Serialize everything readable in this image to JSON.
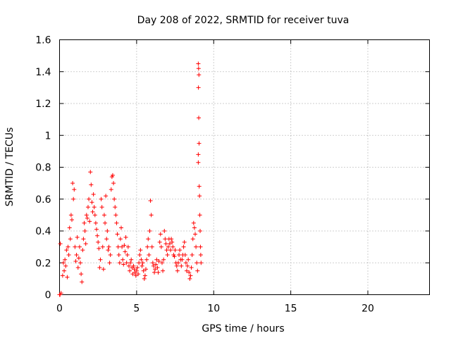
{
  "chart_data": {
    "type": "scatter",
    "title": "Day 208 of 2022, SRMTID for receiver tuva",
    "xlabel": "GPS time / hours",
    "ylabel": "SRMTID / TECUs",
    "xlim": [
      0,
      24
    ],
    "ylim": [
      0,
      1.6
    ],
    "xticks": [
      0,
      5,
      10,
      15,
      20
    ],
    "xtick_labels": [
      "0",
      "5",
      "10",
      "15",
      "20"
    ],
    "yticks": [
      0,
      0.2,
      0.4,
      0.6,
      0.8,
      1,
      1.2,
      1.4,
      1.6
    ],
    "ytick_labels": [
      "0",
      "0.2",
      "0.4",
      "0.6",
      "0.8",
      "1",
      "1.2",
      "1.4",
      "1.6"
    ],
    "grid": true,
    "marker": "+",
    "series": [
      {
        "name": "SRMTID",
        "color": "#ff0000",
        "points": [
          [
            0.0,
            0.0
          ],
          [
            0.03,
            0.0
          ],
          [
            0.05,
            0.32
          ],
          [
            0.1,
            0.01
          ],
          [
            0.2,
            0.12
          ],
          [
            0.25,
            0.2
          ],
          [
            0.3,
            0.15
          ],
          [
            0.35,
            0.22
          ],
          [
            0.4,
            0.18
          ],
          [
            0.45,
            0.28
          ],
          [
            0.5,
            0.11
          ],
          [
            0.55,
            0.3
          ],
          [
            0.6,
            0.25
          ],
          [
            0.65,
            0.42
          ],
          [
            0.7,
            0.35
          ],
          [
            0.75,
            0.5
          ],
          [
            0.8,
            0.47
          ],
          [
            0.85,
            0.7
          ],
          [
            0.9,
            0.6
          ],
          [
            0.95,
            0.66
          ],
          [
            1.0,
            0.3
          ],
          [
            1.05,
            0.21
          ],
          [
            1.1,
            0.25
          ],
          [
            1.15,
            0.36
          ],
          [
            1.2,
            0.17
          ],
          [
            1.25,
            0.23
          ],
          [
            1.3,
            0.3
          ],
          [
            1.35,
            0.2
          ],
          [
            1.4,
            0.13
          ],
          [
            1.45,
            0.08
          ],
          [
            1.5,
            0.28
          ],
          [
            1.55,
            0.35
          ],
          [
            1.6,
            0.45
          ],
          [
            1.65,
            0.4
          ],
          [
            1.7,
            0.32
          ],
          [
            1.75,
            0.5
          ],
          [
            1.8,
            0.48
          ],
          [
            1.85,
            0.55
          ],
          [
            1.9,
            0.6
          ],
          [
            1.95,
            0.46
          ],
          [
            2.0,
            0.77
          ],
          [
            2.05,
            0.69
          ],
          [
            2.1,
            0.58
          ],
          [
            2.15,
            0.52
          ],
          [
            2.2,
            0.63
          ],
          [
            2.25,
            0.55
          ],
          [
            2.3,
            0.5
          ],
          [
            2.35,
            0.45
          ],
          [
            2.4,
            0.41
          ],
          [
            2.45,
            0.37
          ],
          [
            2.5,
            0.33
          ],
          [
            2.55,
            0.29
          ],
          [
            2.6,
            0.17
          ],
          [
            2.65,
            0.22
          ],
          [
            2.7,
            0.6
          ],
          [
            2.75,
            0.55
          ],
          [
            2.8,
            0.3
          ],
          [
            2.85,
            0.16
          ],
          [
            2.9,
            0.5
          ],
          [
            2.95,
            0.45
          ],
          [
            3.0,
            0.62
          ],
          [
            3.05,
            0.35
          ],
          [
            3.1,
            0.4
          ],
          [
            3.15,
            0.28
          ],
          [
            3.2,
            0.3
          ],
          [
            3.25,
            0.2
          ],
          [
            3.3,
            0.25
          ],
          [
            3.35,
            0.66
          ],
          [
            3.4,
            0.74
          ],
          [
            3.45,
            0.75
          ],
          [
            3.5,
            0.7
          ],
          [
            3.55,
            0.6
          ],
          [
            3.6,
            0.55
          ],
          [
            3.65,
            0.5
          ],
          [
            3.7,
            0.45
          ],
          [
            3.75,
            0.38
          ],
          [
            3.8,
            0.3
          ],
          [
            3.85,
            0.25
          ],
          [
            3.9,
            0.2
          ],
          [
            3.95,
            0.35
          ],
          [
            4.0,
            0.42
          ],
          [
            4.05,
            0.3
          ],
          [
            4.1,
            0.22
          ],
          [
            4.15,
            0.19
          ],
          [
            4.2,
            0.31
          ],
          [
            4.25,
            0.27
          ],
          [
            4.3,
            0.36
          ],
          [
            4.35,
            0.2
          ],
          [
            4.4,
            0.25
          ],
          [
            4.45,
            0.3
          ],
          [
            4.5,
            0.18
          ],
          [
            4.55,
            0.15
          ],
          [
            4.6,
            0.2
          ],
          [
            4.65,
            0.22
          ],
          [
            4.7,
            0.17
          ],
          [
            4.75,
            0.13
          ],
          [
            4.8,
            0.18
          ],
          [
            4.85,
            0.16
          ],
          [
            4.9,
            0.14
          ],
          [
            4.95,
            0.12
          ],
          [
            5.0,
            0.15
          ],
          [
            5.05,
            0.17
          ],
          [
            5.1,
            0.13
          ],
          [
            5.15,
            0.2
          ],
          [
            5.2,
            0.25
          ],
          [
            5.25,
            0.28
          ],
          [
            5.3,
            0.22
          ],
          [
            5.35,
            0.18
          ],
          [
            5.4,
            0.2
          ],
          [
            5.45,
            0.15
          ],
          [
            5.5,
            0.1
          ],
          [
            5.55,
            0.12
          ],
          [
            5.6,
            0.16
          ],
          [
            5.65,
            0.22
          ],
          [
            5.7,
            0.3
          ],
          [
            5.75,
            0.35
          ],
          [
            5.8,
            0.25
          ],
          [
            5.85,
            0.4
          ],
          [
            5.9,
            0.59
          ],
          [
            5.95,
            0.5
          ],
          [
            6.0,
            0.3
          ],
          [
            6.05,
            0.2
          ],
          [
            6.1,
            0.18
          ],
          [
            6.15,
            0.14
          ],
          [
            6.2,
            0.16
          ],
          [
            6.25,
            0.19
          ],
          [
            6.3,
            0.22
          ],
          [
            6.35,
            0.17
          ],
          [
            6.4,
            0.14
          ],
          [
            6.45,
            0.21
          ],
          [
            6.5,
            0.33
          ],
          [
            6.55,
            0.38
          ],
          [
            6.6,
            0.3
          ],
          [
            6.65,
            0.2
          ],
          [
            6.7,
            0.15
          ],
          [
            6.75,
            0.22
          ],
          [
            6.8,
            0.4
          ],
          [
            6.85,
            0.35
          ],
          [
            6.9,
            0.32
          ],
          [
            6.95,
            0.28
          ],
          [
            7.0,
            0.25
          ],
          [
            7.05,
            0.3
          ],
          [
            7.1,
            0.35
          ],
          [
            7.15,
            0.32
          ],
          [
            7.2,
            0.28
          ],
          [
            7.25,
            0.35
          ],
          [
            7.3,
            0.33
          ],
          [
            7.35,
            0.3
          ],
          [
            7.4,
            0.25
          ],
          [
            7.45,
            0.24
          ],
          [
            7.5,
            0.28
          ],
          [
            7.55,
            0.2
          ],
          [
            7.6,
            0.18
          ],
          [
            7.65,
            0.15
          ],
          [
            7.7,
            0.2
          ],
          [
            7.75,
            0.25
          ],
          [
            7.8,
            0.28
          ],
          [
            7.85,
            0.22
          ],
          [
            7.9,
            0.18
          ],
          [
            7.95,
            0.22
          ],
          [
            8.0,
            0.25
          ],
          [
            8.05,
            0.3
          ],
          [
            8.1,
            0.33
          ],
          [
            8.15,
            0.25
          ],
          [
            8.2,
            0.2
          ],
          [
            8.25,
            0.15
          ],
          [
            8.3,
            0.18
          ],
          [
            8.35,
            0.22
          ],
          [
            8.4,
            0.14
          ],
          [
            8.45,
            0.1
          ],
          [
            8.5,
            0.12
          ],
          [
            8.55,
            0.17
          ],
          [
            8.6,
            0.25
          ],
          [
            8.65,
            0.35
          ],
          [
            8.7,
            0.45
          ],
          [
            8.75,
            0.42
          ],
          [
            8.8,
            0.38
          ],
          [
            8.85,
            0.3
          ],
          [
            8.9,
            0.2
          ],
          [
            8.95,
            0.15
          ],
          [
            9.0,
            0.83
          ],
          [
            9.0,
            1.45
          ],
          [
            9.02,
            1.42
          ],
          [
            9.04,
            1.38
          ],
          [
            9.01,
            1.3
          ],
          [
            9.03,
            1.11
          ],
          [
            9.05,
            0.95
          ],
          [
            9.0,
            0.88
          ],
          [
            9.06,
            0.68
          ],
          [
            9.08,
            0.62
          ],
          [
            9.1,
            0.5
          ],
          [
            9.12,
            0.4
          ],
          [
            9.14,
            0.3
          ],
          [
            9.16,
            0.25
          ],
          [
            9.18,
            0.2
          ]
        ]
      }
    ]
  }
}
